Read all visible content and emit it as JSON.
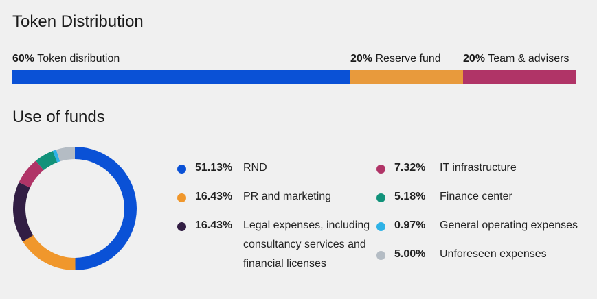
{
  "token": {
    "title": "Token Distribution",
    "segments": [
      {
        "pct": "60%",
        "label": "Token disribution",
        "value": 60,
        "color": "#0a51d6"
      },
      {
        "pct": "20%",
        "label": "Reserve fund",
        "value": 20,
        "color": "#e89a3c"
      },
      {
        "pct": "20%",
        "label": "Team & advisers",
        "value": 20,
        "color": "#b03467"
      }
    ]
  },
  "funds": {
    "title": "Use of funds"
  },
  "chart_data": {
    "type": "pie",
    "categories": [
      "RND",
      "PR and marketing",
      "Legal expenses, including consultancy services and financial licenses",
      "IT infrastructure",
      "Finance center",
      "General operating expenses",
      "Unforeseen expenses"
    ],
    "values": [
      51.13,
      16.43,
      16.43,
      7.32,
      5.18,
      0.97,
      5.0
    ],
    "labels": [
      "51.13%",
      "16.43%",
      "16.43%",
      "7.32%",
      "5.18%",
      "0.97%",
      "5.00%"
    ],
    "colors": [
      "#0a51d6",
      "#f0972c",
      "#321e44",
      "#b03467",
      "#11927a",
      "#2eb2e6",
      "#b4bcc4"
    ],
    "title": "",
    "legend": "right"
  }
}
